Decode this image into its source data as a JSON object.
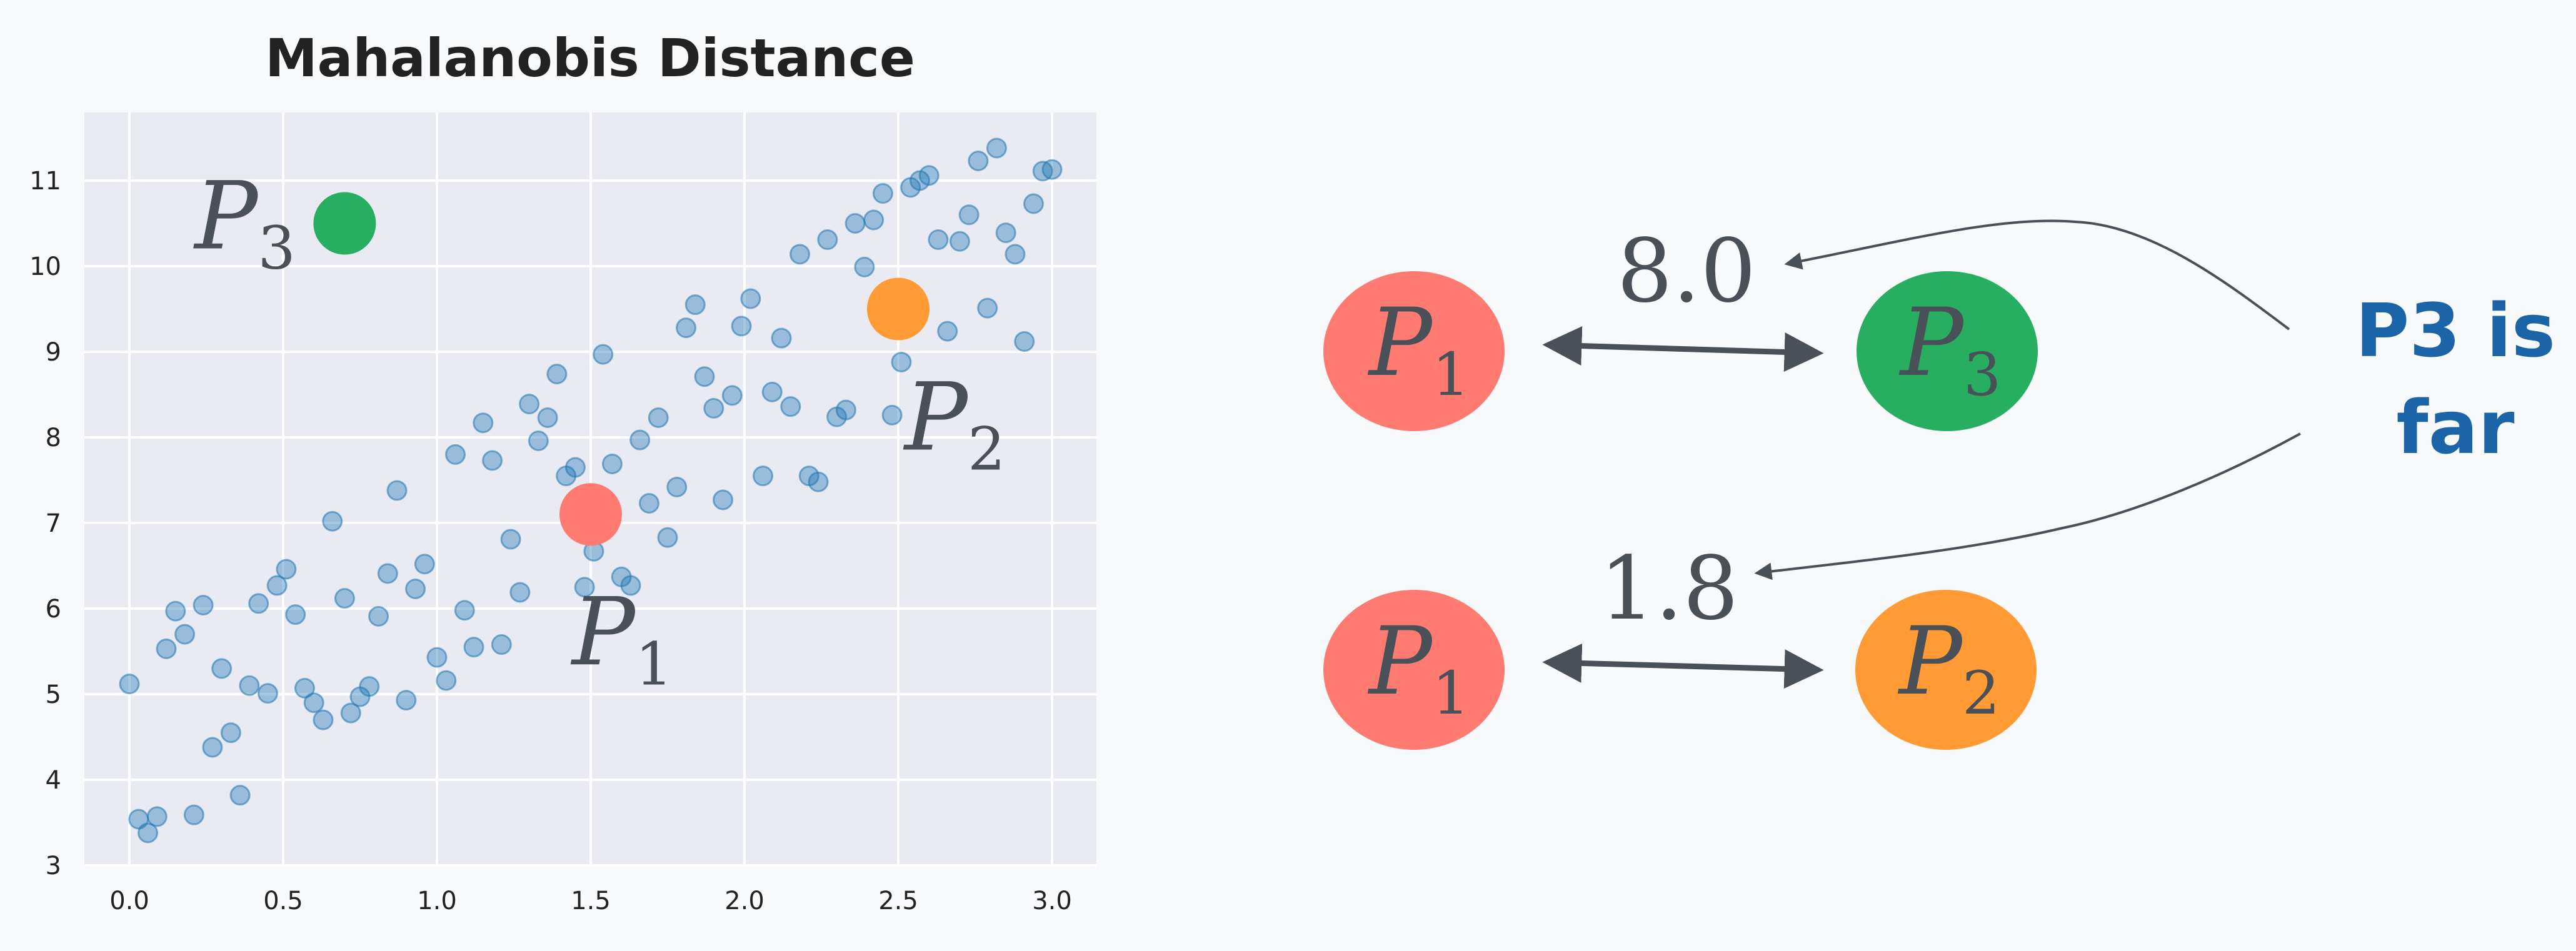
{
  "chart_data": {
    "type": "scatter",
    "title": "Mahalanobis Distance",
    "xlabel": "",
    "ylabel": "",
    "xlim": [
      -0.14,
      3.14
    ],
    "ylim": [
      3,
      11.8
    ],
    "grid": true,
    "x_ticks": [
      "0.0",
      "0.5",
      "1.0",
      "1.5",
      "2.0",
      "2.5",
      "3.0"
    ],
    "y_ticks": [
      "3",
      "4",
      "5",
      "6",
      "7",
      "8",
      "9",
      "10",
      "11"
    ],
    "series": [
      {
        "name": "data",
        "color": "#1f77b4",
        "alpha": 0.4,
        "points": [
          [
            0.0,
            5.12
          ],
          [
            0.03,
            3.54
          ],
          [
            0.06,
            3.38
          ],
          [
            0.09,
            3.57
          ],
          [
            0.12,
            5.53
          ],
          [
            0.15,
            5.97
          ],
          [
            0.18,
            5.7
          ],
          [
            0.21,
            3.59
          ],
          [
            0.24,
            6.04
          ],
          [
            0.27,
            4.38
          ],
          [
            0.3,
            5.3
          ],
          [
            0.33,
            4.55
          ],
          [
            0.36,
            3.82
          ],
          [
            0.39,
            5.1
          ],
          [
            0.42,
            6.06
          ],
          [
            0.45,
            5.01
          ],
          [
            0.48,
            6.27
          ],
          [
            0.51,
            6.46
          ],
          [
            0.54,
            5.93
          ],
          [
            0.57,
            5.07
          ],
          [
            0.6,
            4.9
          ],
          [
            0.63,
            4.7
          ],
          [
            0.66,
            7.02
          ],
          [
            0.7,
            6.12
          ],
          [
            0.72,
            4.78
          ],
          [
            0.75,
            4.97
          ],
          [
            0.78,
            5.09
          ],
          [
            0.81,
            5.91
          ],
          [
            0.84,
            6.41
          ],
          [
            0.87,
            7.38
          ],
          [
            0.9,
            4.93
          ],
          [
            0.93,
            6.23
          ],
          [
            0.96,
            6.52
          ],
          [
            1.0,
            5.43
          ],
          [
            1.03,
            5.16
          ],
          [
            1.06,
            7.8
          ],
          [
            1.09,
            5.98
          ],
          [
            1.12,
            5.55
          ],
          [
            1.15,
            8.17
          ],
          [
            1.18,
            7.73
          ],
          [
            1.21,
            5.58
          ],
          [
            1.24,
            6.81
          ],
          [
            1.27,
            6.19
          ],
          [
            1.3,
            8.39
          ],
          [
            1.33,
            7.96
          ],
          [
            1.36,
            8.23
          ],
          [
            1.39,
            8.74
          ],
          [
            1.42,
            7.55
          ],
          [
            1.45,
            7.65
          ],
          [
            1.48,
            6.25
          ],
          [
            1.51,
            6.67
          ],
          [
            1.54,
            8.97
          ],
          [
            1.57,
            7.69
          ],
          [
            1.6,
            6.37
          ],
          [
            1.63,
            6.27
          ],
          [
            1.66,
            7.97
          ],
          [
            1.69,
            7.23
          ],
          [
            1.72,
            8.23
          ],
          [
            1.75,
            6.83
          ],
          [
            1.78,
            7.42
          ],
          [
            1.81,
            9.28
          ],
          [
            1.84,
            9.55
          ],
          [
            1.87,
            8.71
          ],
          [
            1.9,
            8.34
          ],
          [
            1.93,
            7.27
          ],
          [
            1.96,
            8.49
          ],
          [
            1.99,
            9.3
          ],
          [
            2.02,
            9.62
          ],
          [
            2.06,
            7.55
          ],
          [
            2.09,
            8.53
          ],
          [
            2.12,
            9.16
          ],
          [
            2.15,
            8.36
          ],
          [
            2.18,
            10.14
          ],
          [
            2.21,
            7.55
          ],
          [
            2.24,
            7.48
          ],
          [
            2.27,
            10.31
          ],
          [
            2.3,
            8.24
          ],
          [
            2.33,
            8.32
          ],
          [
            2.36,
            10.5
          ],
          [
            2.39,
            9.99
          ],
          [
            2.42,
            10.54
          ],
          [
            2.45,
            10.85
          ],
          [
            2.48,
            8.26
          ],
          [
            2.51,
            8.88
          ],
          [
            2.54,
            10.92
          ],
          [
            2.57,
            11.0
          ],
          [
            2.6,
            11.06
          ],
          [
            2.63,
            10.31
          ],
          [
            2.66,
            9.24
          ],
          [
            2.7,
            10.29
          ],
          [
            2.73,
            10.6
          ],
          [
            2.76,
            11.23
          ],
          [
            2.79,
            9.51
          ],
          [
            2.82,
            11.38
          ],
          [
            2.85,
            10.39
          ],
          [
            2.88,
            10.14
          ],
          [
            2.91,
            9.12
          ],
          [
            2.94,
            10.73
          ],
          [
            2.97,
            11.11
          ],
          [
            3.0,
            11.13
          ]
        ]
      }
    ],
    "highlighted_points": [
      {
        "label": "P",
        "sub": "1",
        "x": 1.5,
        "y": 7.1,
        "color": "#ff7b72"
      },
      {
        "label": "P",
        "sub": "2",
        "x": 2.5,
        "y": 9.5,
        "color": "#ff9a35"
      },
      {
        "label": "P",
        "sub": "3",
        "x": 0.7,
        "y": 10.5,
        "color": "#27ae60"
      }
    ]
  },
  "diagram": {
    "pairs": [
      {
        "left": {
          "label": "P",
          "sub": "1",
          "color": "#ff7b72"
        },
        "right": {
          "label": "P",
          "sub": "3",
          "color": "#27ae60"
        },
        "distance": "8.0"
      },
      {
        "left": {
          "label": "P",
          "sub": "1",
          "color": "#ff7b72"
        },
        "right": {
          "label": "P",
          "sub": "2",
          "color": "#ff9a35"
        },
        "distance": "1.8"
      }
    ],
    "annotation": {
      "line1": "P3 is",
      "line2": "far",
      "color": "#1b64a8"
    },
    "ink_color": "#4a5058"
  },
  "colors": {
    "background": "#f8f9fb",
    "plot_bg": "#eaeaf2",
    "grid": "#ffffff",
    "text": "#222222"
  }
}
